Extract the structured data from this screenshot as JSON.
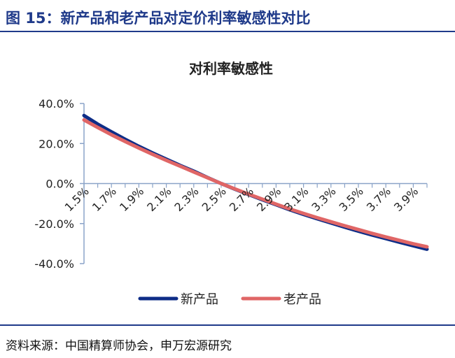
{
  "figure": {
    "title": "图 15：新产品和老产品对定价利率敏感性对比",
    "source": "资料来源：中国精算师协会，申万宏源研究"
  },
  "colors": {
    "accent": "#1f3a8a",
    "series_new": "#0e2d87",
    "series_old": "#e06666",
    "axis": "#8aa3c8"
  },
  "chart_data": {
    "type": "line",
    "title": "对利率敏感性",
    "xlabel": "",
    "ylabel": "",
    "x": [
      "1.5%",
      "1.7%",
      "1.9%",
      "2.1%",
      "2.3%",
      "2.5%",
      "2.7%",
      "2.9%",
      "3.1%",
      "3.3%",
      "3.5%",
      "3.7%",
      "3.9%"
    ],
    "y_ticks": [
      "40.0%",
      "20.0%",
      "0.0%",
      "-20.0%",
      "-40.0%"
    ],
    "ylim": [
      -40,
      40
    ],
    "grid": false,
    "legend_position": "bottom",
    "series": [
      {
        "name": "新产品",
        "color": "#0e2d87",
        "points": [
          [
            1.5,
            34.0
          ],
          [
            1.6,
            29.7
          ],
          [
            1.7,
            25.8
          ],
          [
            1.8,
            22.1
          ],
          [
            1.9,
            18.6
          ],
          [
            2.0,
            15.3
          ],
          [
            2.1,
            12.2
          ],
          [
            2.2,
            9.1
          ],
          [
            2.3,
            6.2
          ],
          [
            2.4,
            3.0
          ],
          [
            2.5,
            0.0
          ],
          [
            2.6,
            -2.8
          ],
          [
            2.7,
            -5.5
          ],
          [
            2.8,
            -8.1
          ],
          [
            2.9,
            -10.6
          ],
          [
            3.0,
            -13.1
          ],
          [
            3.1,
            -15.4
          ],
          [
            3.2,
            -17.6
          ],
          [
            3.3,
            -19.7
          ],
          [
            3.4,
            -21.8
          ],
          [
            3.5,
            -23.8
          ],
          [
            3.6,
            -25.7
          ],
          [
            3.7,
            -27.5
          ],
          [
            3.8,
            -29.3
          ],
          [
            3.9,
            -31.1
          ],
          [
            4.0,
            -32.8
          ]
        ]
      },
      {
        "name": "老产品",
        "color": "#e06666",
        "points": [
          [
            1.5,
            31.8
          ],
          [
            1.6,
            28.0
          ],
          [
            1.7,
            24.4
          ],
          [
            1.8,
            21.0
          ],
          [
            1.9,
            17.7
          ],
          [
            2.0,
            14.6
          ],
          [
            2.1,
            11.6
          ],
          [
            2.2,
            8.7
          ],
          [
            2.3,
            5.8
          ],
          [
            2.4,
            2.9
          ],
          [
            2.5,
            0.0
          ],
          [
            2.6,
            -2.7
          ],
          [
            2.7,
            -5.3
          ],
          [
            2.8,
            -7.8
          ],
          [
            2.9,
            -10.3
          ],
          [
            3.0,
            -12.7
          ],
          [
            3.1,
            -14.9
          ],
          [
            3.2,
            -17.1
          ],
          [
            3.3,
            -19.1
          ],
          [
            3.4,
            -21.1
          ],
          [
            3.5,
            -23.0
          ],
          [
            3.6,
            -24.9
          ],
          [
            3.7,
            -26.7
          ],
          [
            3.8,
            -28.4
          ],
          [
            3.9,
            -30.1
          ],
          [
            4.0,
            -31.6
          ]
        ]
      }
    ]
  }
}
